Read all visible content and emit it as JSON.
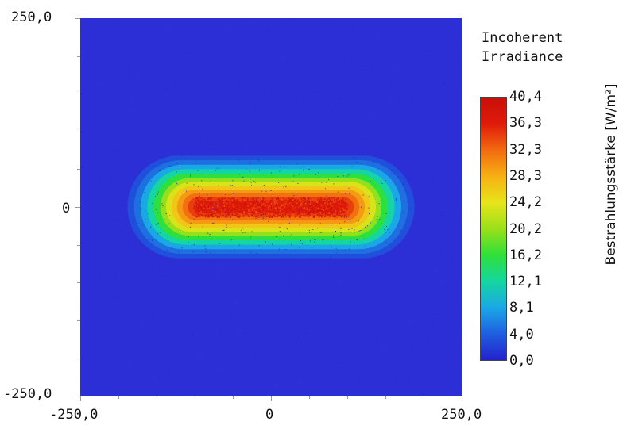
{
  "chart_data": {
    "type": "heatmap",
    "title": "Incoherent Irradiance",
    "title_lines": [
      "Incoherent",
      "Irradiance"
    ],
    "x_ticks": [
      "-250,0",
      "0",
      "250,0"
    ],
    "y_ticks": [
      "250,0",
      "0",
      "-250,0"
    ],
    "xlim": [
      -250,
      250
    ],
    "ylim": [
      -250,
      250
    ],
    "colorbar": {
      "label": "Bestrahlungsstärke [W/m²]",
      "ticks": [
        "40,4",
        "36,3",
        "32,3",
        "28,3",
        "24,2",
        "20,2",
        "16,2",
        "12,1",
        "8,1",
        "4,0",
        "0,0"
      ],
      "range": [
        0,
        40.4
      ],
      "colormap": [
        "#2222cc",
        "#1f5fe0",
        "#1aa8e6",
        "#15d6a0",
        "#2fe03a",
        "#9ae01a",
        "#e8e41a",
        "#f7b014",
        "#f26a10",
        "#e01a0a",
        "#c8100a"
      ]
    },
    "distribution": {
      "shape": "stadium",
      "center": [
        0,
        0
      ],
      "flat_core_x": [
        -90,
        90
      ],
      "peak_value": 40.4,
      "background_value": 1.5
    }
  }
}
